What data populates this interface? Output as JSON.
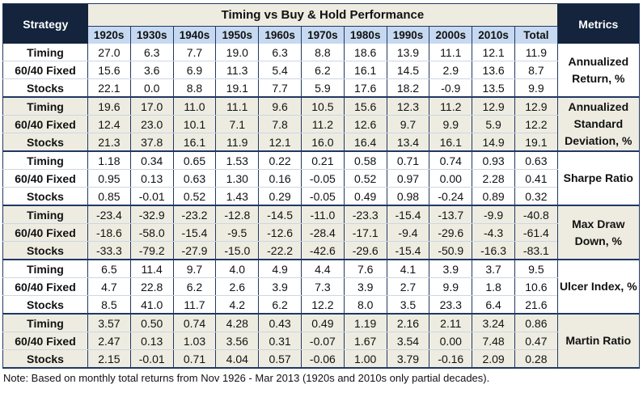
{
  "header": {
    "strategy_label": "Strategy",
    "title": "Timing vs Buy & Hold Performance",
    "metrics_label": "Metrics",
    "columns": [
      "1920s",
      "1930s",
      "1940s",
      "1950s",
      "1960s",
      "1970s",
      "1980s",
      "1990s",
      "2000s",
      "2010s",
      "Total"
    ]
  },
  "groups": [
    {
      "metric": "Annualized Return, %",
      "shaded": false,
      "rows": [
        {
          "strategy": "Timing",
          "values": [
            "27.0",
            "6.3",
            "7.7",
            "19.0",
            "6.3",
            "8.8",
            "18.6",
            "13.9",
            "11.1",
            "12.1",
            "11.9"
          ]
        },
        {
          "strategy": "60/40 Fixed",
          "values": [
            "15.6",
            "3.6",
            "6.9",
            "11.3",
            "5.4",
            "6.2",
            "16.1",
            "14.5",
            "2.9",
            "13.6",
            "8.7"
          ]
        },
        {
          "strategy": "Stocks",
          "values": [
            "22.1",
            "0.0",
            "8.8",
            "19.1",
            "7.7",
            "5.9",
            "17.6",
            "18.2",
            "-0.9",
            "13.5",
            "9.9"
          ]
        }
      ]
    },
    {
      "metric": "Annualized Standard Deviation, %",
      "shaded": true,
      "rows": [
        {
          "strategy": "Timing",
          "values": [
            "19.6",
            "17.0",
            "11.0",
            "11.1",
            "9.6",
            "10.5",
            "15.6",
            "12.3",
            "11.2",
            "12.9",
            "12.9"
          ]
        },
        {
          "strategy": "60/40 Fixed",
          "values": [
            "12.4",
            "23.0",
            "10.1",
            "7.1",
            "7.8",
            "11.2",
            "12.6",
            "9.7",
            "9.9",
            "5.9",
            "12.2"
          ]
        },
        {
          "strategy": "Stocks",
          "values": [
            "21.3",
            "37.8",
            "16.1",
            "11.9",
            "12.1",
            "16.0",
            "16.4",
            "13.4",
            "16.1",
            "14.9",
            "19.1"
          ]
        }
      ]
    },
    {
      "metric": "Sharpe Ratio",
      "shaded": false,
      "rows": [
        {
          "strategy": "Timing",
          "values": [
            "1.18",
            "0.34",
            "0.65",
            "1.53",
            "0.22",
            "0.21",
            "0.58",
            "0.71",
            "0.74",
            "0.93",
            "0.63"
          ]
        },
        {
          "strategy": "60/40 Fixed",
          "values": [
            "0.95",
            "0.13",
            "0.63",
            "1.30",
            "0.16",
            "-0.05",
            "0.52",
            "0.97",
            "0.00",
            "2.28",
            "0.41"
          ]
        },
        {
          "strategy": "Stocks",
          "values": [
            "0.85",
            "-0.01",
            "0.52",
            "1.43",
            "0.29",
            "-0.05",
            "0.49",
            "0.98",
            "-0.24",
            "0.89",
            "0.32"
          ]
        }
      ]
    },
    {
      "metric": "Max Draw Down, %",
      "shaded": true,
      "rows": [
        {
          "strategy": "Timing",
          "values": [
            "-23.4",
            "-32.9",
            "-23.2",
            "-12.8",
            "-14.5",
            "-11.0",
            "-23.3",
            "-15.4",
            "-13.7",
            "-9.9",
            "-40.8"
          ]
        },
        {
          "strategy": "60/40 Fixed",
          "values": [
            "-18.6",
            "-58.0",
            "-15.4",
            "-9.5",
            "-12.6",
            "-28.4",
            "-17.1",
            "-9.4",
            "-29.6",
            "-4.3",
            "-61.4"
          ]
        },
        {
          "strategy": "Stocks",
          "values": [
            "-33.3",
            "-79.2",
            "-27.9",
            "-15.0",
            "-22.2",
            "-42.6",
            "-29.6",
            "-15.4",
            "-50.9",
            "-16.3",
            "-83.1"
          ]
        }
      ]
    },
    {
      "metric": "Ulcer Index, %",
      "shaded": false,
      "rows": [
        {
          "strategy": "Timing",
          "values": [
            "6.5",
            "11.4",
            "9.7",
            "4.0",
            "4.9",
            "4.4",
            "7.6",
            "4.1",
            "3.9",
            "3.7",
            "9.5"
          ]
        },
        {
          "strategy": "60/40 Fixed",
          "values": [
            "4.7",
            "22.8",
            "6.2",
            "2.6",
            "3.9",
            "7.3",
            "3.9",
            "2.7",
            "9.9",
            "1.8",
            "10.6"
          ]
        },
        {
          "strategy": "Stocks",
          "values": [
            "8.5",
            "41.0",
            "11.7",
            "4.2",
            "6.2",
            "12.2",
            "8.0",
            "3.5",
            "23.3",
            "6.4",
            "21.6"
          ]
        }
      ]
    },
    {
      "metric": "Martin Ratio",
      "shaded": true,
      "rows": [
        {
          "strategy": "Timing",
          "values": [
            "3.57",
            "0.50",
            "0.74",
            "4.28",
            "0.43",
            "0.49",
            "1.19",
            "2.16",
            "2.11",
            "3.24",
            "0.86"
          ]
        },
        {
          "strategy": "60/40 Fixed",
          "values": [
            "2.47",
            "0.13",
            "1.03",
            "3.56",
            "0.31",
            "-0.07",
            "1.67",
            "3.54",
            "0.00",
            "7.48",
            "0.47"
          ]
        },
        {
          "strategy": "Stocks",
          "values": [
            "2.15",
            "-0.01",
            "0.71",
            "4.04",
            "0.57",
            "-0.06",
            "1.00",
            "3.79",
            "-0.16",
            "2.09",
            "0.28"
          ]
        }
      ]
    }
  ],
  "note": "Note: Based on monthly total returns from Nov 1926 - Mar 2013 (1920s and 2010s only partial decades)."
}
